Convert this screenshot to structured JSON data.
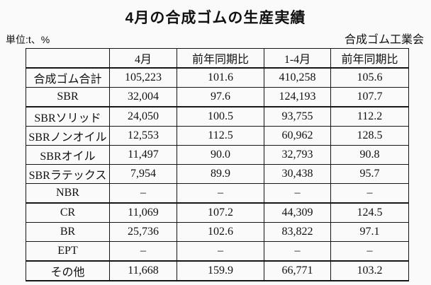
{
  "page": {
    "title": "4月の合成ゴムの生産実績",
    "unit_note": "単位:t、%",
    "source": "合成ゴム工業会"
  },
  "table": {
    "columns": [
      "",
      "4月",
      "前年同期比",
      "1-4月",
      "前年同期比"
    ],
    "rows": [
      {
        "label": "合成ゴム合計",
        "values": [
          "105,223",
          "101.6",
          "410,258",
          "105.6"
        ]
      },
      {
        "label": "SBR",
        "values": [
          "32,004",
          "97.6",
          "124,193",
          "107.7"
        ]
      },
      {
        "label": "SBRソリッド",
        "values": [
          "24,050",
          "100.5",
          "93,755",
          "112.2"
        ]
      },
      {
        "label": "SBRノンオイル",
        "values": [
          "12,553",
          "112.5",
          "60,962",
          "128.5"
        ]
      },
      {
        "label": "SBRオイル",
        "values": [
          "11,497",
          "90.0",
          "32,793",
          "90.8"
        ]
      },
      {
        "label": "SBRラテックス",
        "values": [
          "7,954",
          "89.9",
          "30,438",
          "95.7"
        ]
      },
      {
        "label": "NBR",
        "values": [
          "–",
          "–",
          "–",
          "–"
        ]
      },
      {
        "label": "CR",
        "values": [
          "11,069",
          "107.2",
          "44,309",
          "124.5"
        ]
      },
      {
        "label": "BR",
        "values": [
          "25,736",
          "102.6",
          "83,822",
          "97.1"
        ]
      },
      {
        "label": "EPT",
        "values": [
          "–",
          "–",
          "–",
          "–"
        ]
      },
      {
        "label": "その他",
        "values": [
          "11,668",
          "159.9",
          "66,771",
          "103.2"
        ]
      }
    ]
  }
}
